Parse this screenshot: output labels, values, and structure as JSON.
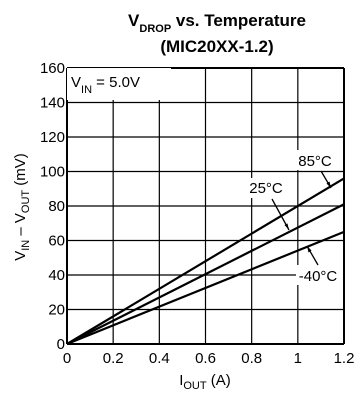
{
  "chart_data": {
    "type": "line",
    "title": {
      "main": "V",
      "sub": "DROP",
      "rest": " vs. Temperature"
    },
    "subtitle": "(MIC20XX-1.2)",
    "xlabel": {
      "main": "I",
      "sub": "OUT",
      "rest": " (A)"
    },
    "ylabel": {
      "p1": "V",
      "s1": "IN",
      "p2": " – V",
      "s2": "OUT",
      "p3": " (mV)"
    },
    "condition": {
      "main": "V",
      "sub": "IN",
      "rest": " = 5.0V"
    },
    "xlim": [
      0,
      1.2
    ],
    "ylim": [
      0,
      160
    ],
    "x_ticks": [
      0,
      0.2,
      0.4,
      0.6,
      0.8,
      1,
      1.2
    ],
    "x_tick_labels": [
      "0",
      "0.2",
      "0.4",
      "0.6",
      "0.8",
      "1",
      "1.2"
    ],
    "y_ticks": [
      0,
      20,
      40,
      60,
      80,
      100,
      120,
      140,
      160
    ],
    "y_tick_labels": [
      "0",
      "20",
      "40",
      "60",
      "80",
      "100",
      "120",
      "140",
      "160"
    ],
    "grid": true,
    "series": [
      {
        "name": "85°C",
        "x": [
          0,
          1.2
        ],
        "y": [
          0,
          96
        ]
      },
      {
        "name": "25°C",
        "x": [
          0,
          1.2
        ],
        "y": [
          0,
          81
        ]
      },
      {
        "name": "-40°C",
        "x": [
          0,
          1.2
        ],
        "y": [
          0,
          65
        ]
      }
    ],
    "line_color": "#000000"
  }
}
